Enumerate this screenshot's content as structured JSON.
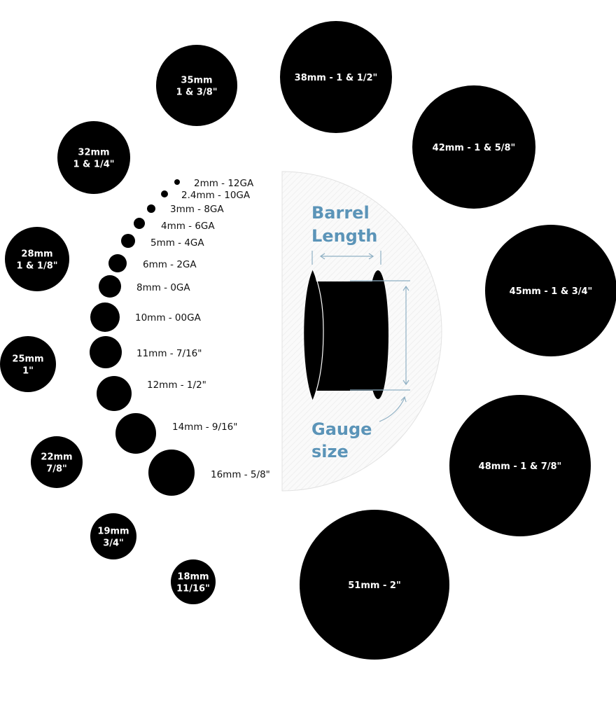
{
  "accent_color": "#5b94b8",
  "diagram": {
    "barrel_label": [
      "Barrel",
      "Length"
    ],
    "gauge_label": [
      "Gauge",
      "size"
    ]
  },
  "small_sizes": [
    {
      "label": "2mm - 12GA"
    },
    {
      "label": "2.4mm - 10GA"
    },
    {
      "label": "3mm - 8GA"
    },
    {
      "label": "4mm - 6GA"
    },
    {
      "label": "5mm - 4GA"
    },
    {
      "label": "6mm - 2GA"
    },
    {
      "label": "8mm - 0GA"
    },
    {
      "label": "10mm - 00GA"
    },
    {
      "label": "11mm - 7/16\""
    },
    {
      "label": "12mm - 1/2\""
    },
    {
      "label": "14mm - 9/16\""
    },
    {
      "label": "16mm - 5/8\""
    }
  ],
  "large_sizes": [
    {
      "lines": [
        "18mm",
        "11/16\""
      ]
    },
    {
      "lines": [
        "19mm",
        "3/4\""
      ]
    },
    {
      "lines": [
        "22mm",
        "7/8\""
      ]
    },
    {
      "lines": [
        "25mm",
        "1\""
      ]
    },
    {
      "lines": [
        "28mm",
        "1 & 1/8\""
      ]
    },
    {
      "lines": [
        "32mm",
        "1 & 1/4\""
      ]
    },
    {
      "lines": [
        "35mm",
        "1 & 3/8\""
      ]
    },
    {
      "lines": [
        "38mm - 1 & 1/2\""
      ]
    },
    {
      "lines": [
        "42mm - 1 & 5/8\""
      ]
    },
    {
      "lines": [
        "45mm - 1 & 3/4\""
      ]
    },
    {
      "lines": [
        "48mm - 1 & 7/8\""
      ]
    },
    {
      "lines": [
        "51mm - 2\""
      ]
    }
  ]
}
